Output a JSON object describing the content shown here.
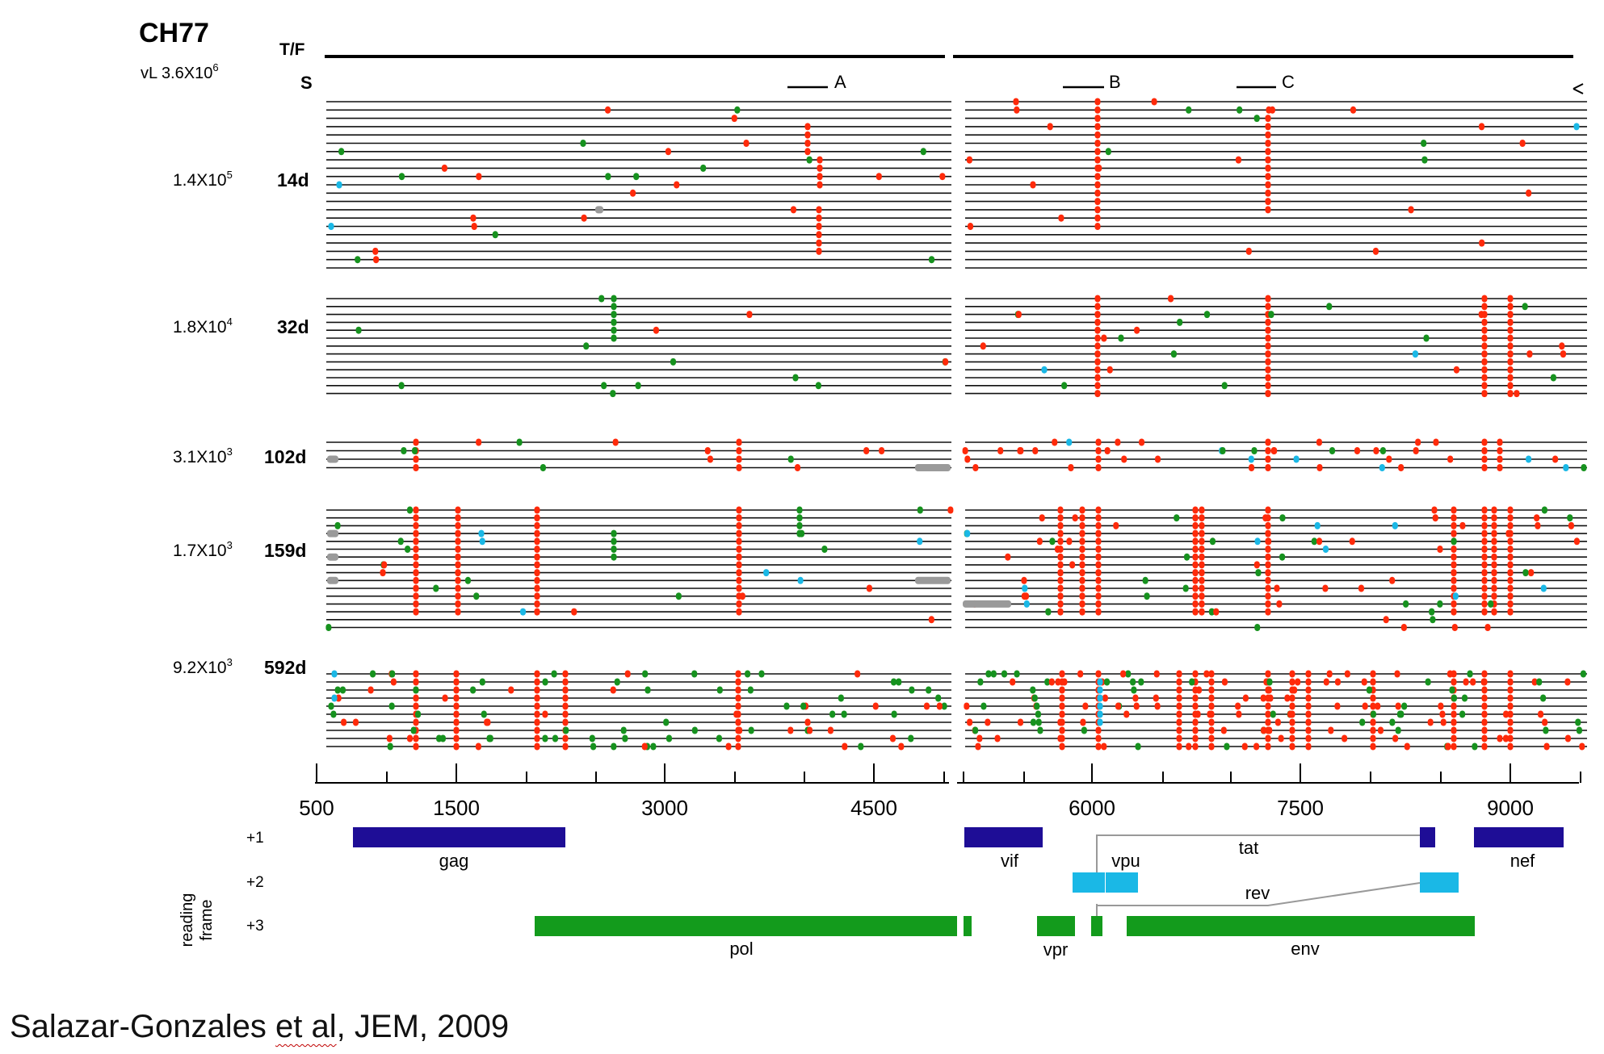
{
  "title": "CH77",
  "row_labels": {
    "tf": "T/F",
    "s": "S"
  },
  "initial_vl": {
    "prefix": "vL 3.6X10",
    "exp": "6"
  },
  "timepoints": [
    {
      "vl": "1.4X10",
      "exp": "5",
      "day": "14d"
    },
    {
      "vl": "1.8X10",
      "exp": "4",
      "day": "32d"
    },
    {
      "vl": "3.1X10",
      "exp": "3",
      "day": "102d"
    },
    {
      "vl": "1.7X10",
      "exp": "3",
      "day": "159d"
    },
    {
      "vl": "9.2X10",
      "exp": "3",
      "day": "592d"
    }
  ],
  "segments": [
    "A",
    "B",
    "C"
  ],
  "axis_ticks": [
    "500",
    "1500",
    "3000",
    "4500",
    "6000",
    "7500",
    "9000"
  ],
  "reading_frame_label": [
    "reading",
    "frame"
  ],
  "frames": [
    "+1",
    "+2",
    "+3"
  ],
  "genes": {
    "gag": "gag",
    "pol": "pol",
    "vif": "vif",
    "vpr": "vpr",
    "vpu": "vpu",
    "tat": "tat",
    "rev": "rev",
    "env": "env",
    "nef": "nef"
  },
  "colors": {
    "mutation_red": "#ff2a0a",
    "mutation_green": "#16921e",
    "mutation_cyan": "#1ab8e6",
    "mutation_gray": "#9a9a9a",
    "frame1": "#1e0d96",
    "frame2": "#1ab8e6",
    "frame3": "#139b1c"
  },
  "citation": {
    "part1": "Salazar-Gonzales ",
    "etal": "et al",
    "part2": ", JEM, 2009"
  }
}
